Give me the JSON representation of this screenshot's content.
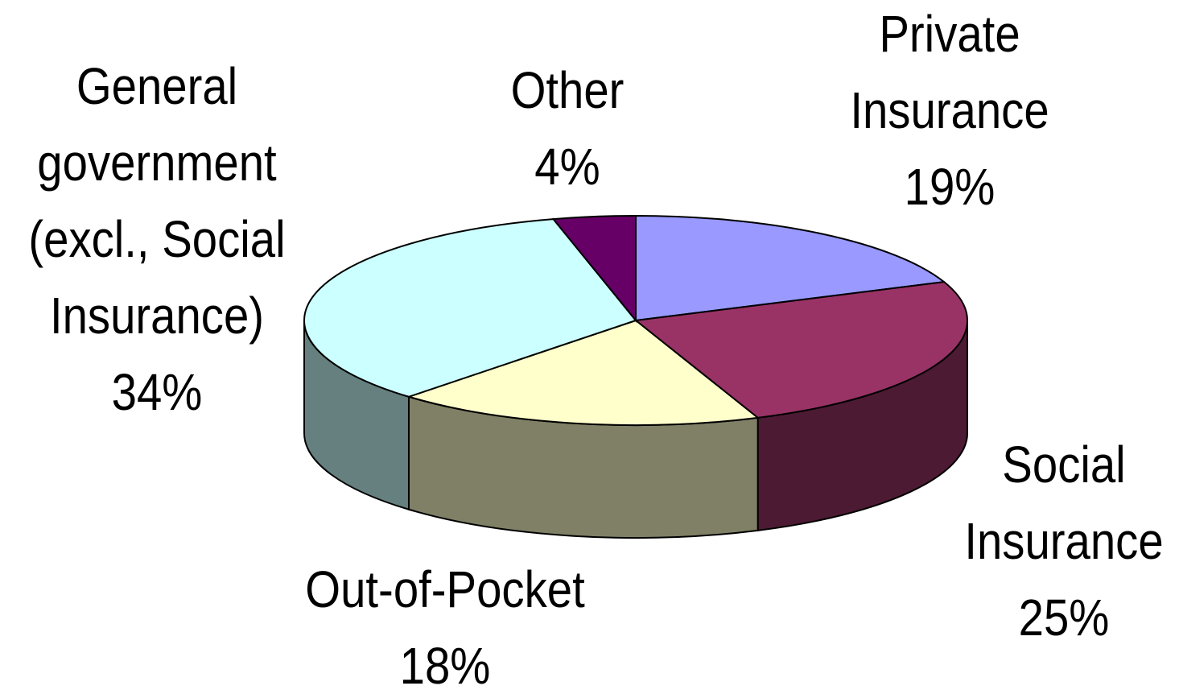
{
  "chart_data": {
    "type": "pie3d",
    "categories": [
      "Private Insurance",
      "Social Insurance",
      "Out-of-Pocket",
      "General government (excl., Social Insurance)",
      "Other"
    ],
    "values": [
      19,
      25,
      18,
      34,
      4
    ],
    "value_labels": [
      "19%",
      "25%",
      "18%",
      "34%",
      "4%"
    ],
    "colors": [
      "#9999ff",
      "#993366",
      "#ffffcc",
      "#ccffff",
      "#660066"
    ]
  }
}
